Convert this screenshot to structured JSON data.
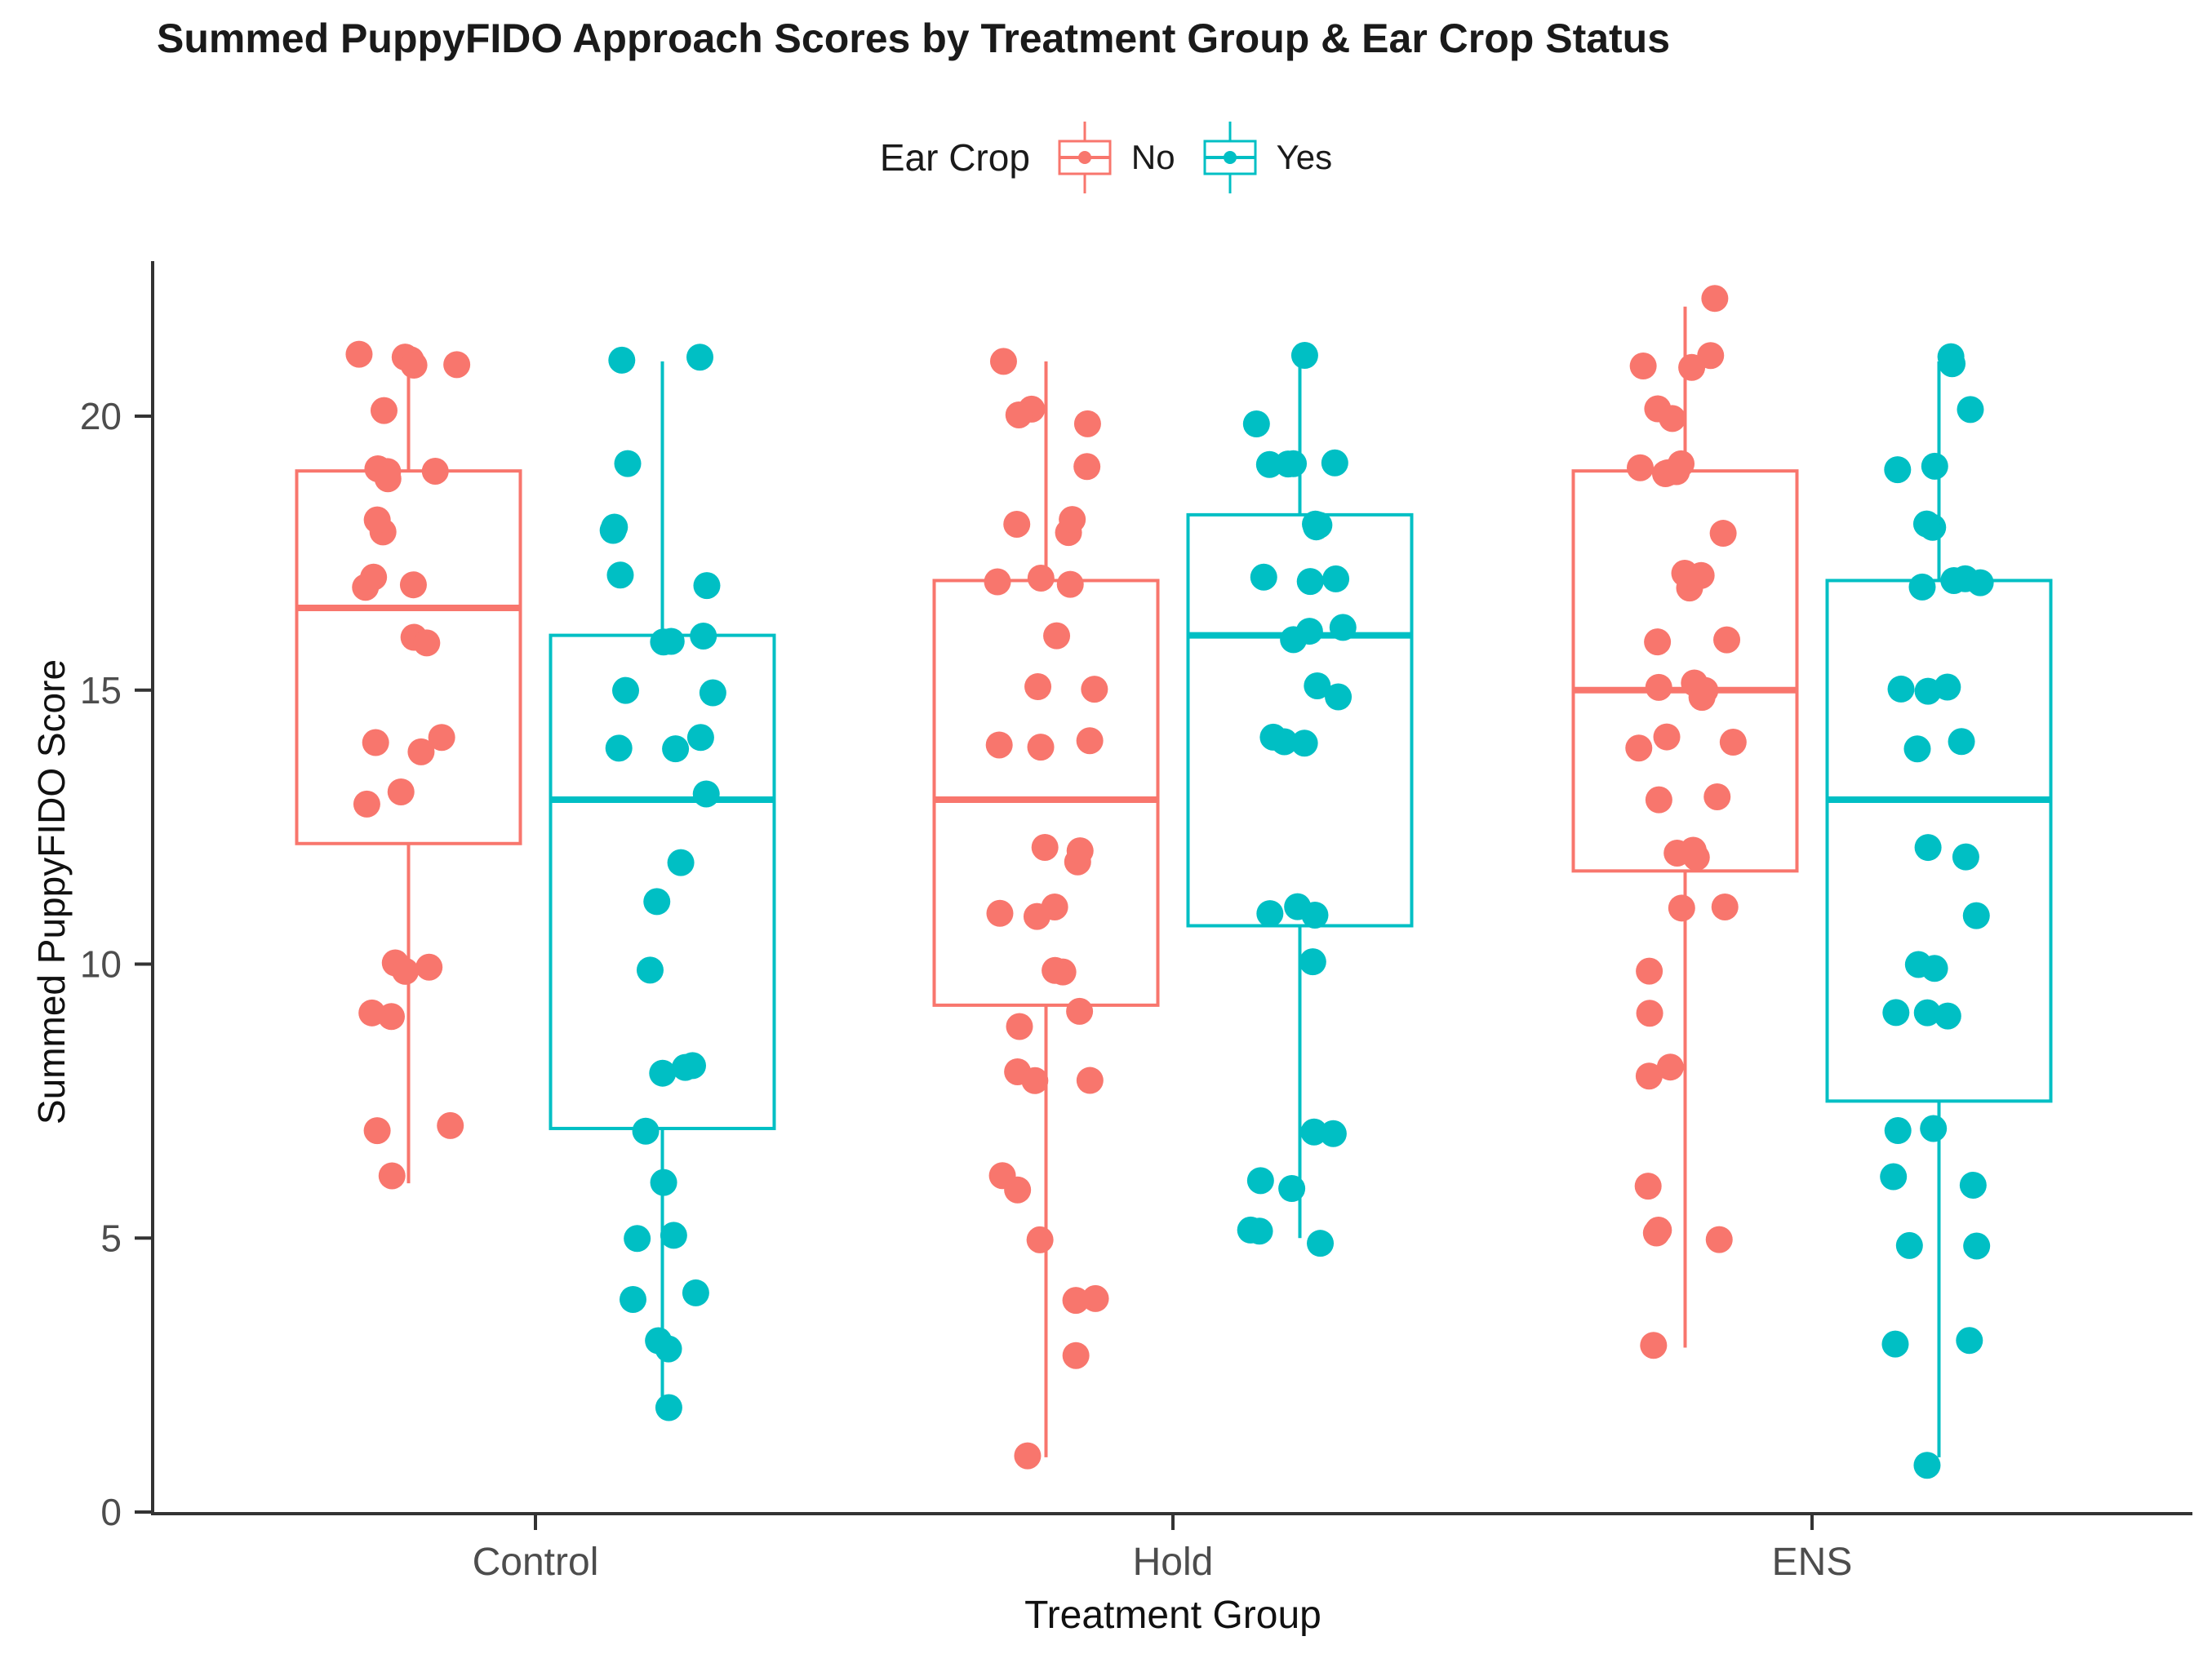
{
  "title": "Summed PuppyFIDO Approach Scores by Treatment Group & Ear Crop Status",
  "legend": {
    "title": "Ear Crop",
    "items": [
      {
        "label": "No",
        "color": "#F8766D"
      },
      {
        "label": "Yes",
        "color": "#00BFC4"
      }
    ]
  },
  "axes": {
    "x": {
      "label": "Treatment Group",
      "categories": [
        "Control",
        "Hold",
        "ENS"
      ]
    },
    "y": {
      "label": "Summed PuppyFIDO Score",
      "ticks": [
        0,
        5,
        10,
        15,
        20
      ],
      "range": [
        0,
        22.5
      ]
    }
  },
  "chart_data": {
    "type": "boxplot-jitter",
    "title": "Summed PuppyFIDO Approach Scores by Treatment Group & Ear Crop Status",
    "xlabel": "Treatment Group",
    "ylabel": "Summed PuppyFIDO Score",
    "ylim": [
      0,
      22.5
    ],
    "yticks": [
      0,
      5,
      10,
      15,
      20
    ],
    "categories": [
      "Control",
      "Hold",
      "ENS"
    ],
    "grid": false,
    "legend_position": "top",
    "series_colors": {
      "No": "#F8766D",
      "Yes": "#00BFC4"
    },
    "groups": [
      {
        "category": "Control",
        "ear_crop": "No",
        "color": "#F8766D",
        "box": {
          "min": 6,
          "q1": 12.2,
          "median": 16.5,
          "q3": 19,
          "max": 21
        },
        "points": [
          21,
          21,
          21,
          21,
          21,
          20,
          19,
          19,
          19,
          19,
          18,
          18,
          17,
          17,
          17,
          16,
          16,
          14,
          14,
          14,
          13,
          13,
          10,
          10,
          10,
          9,
          9,
          7,
          7,
          6
        ]
      },
      {
        "category": "Control",
        "ear_crop": "Yes",
        "color": "#00BFC4",
        "box": {
          "min": 2,
          "q1": 7,
          "median": 13,
          "q3": 16,
          "max": 21
        },
        "points": [
          21,
          21,
          19,
          18,
          18,
          17,
          17,
          16,
          16,
          16,
          15,
          15,
          14,
          14,
          14,
          13,
          12,
          11,
          10,
          8,
          8,
          8,
          7,
          6,
          5,
          5,
          4,
          4,
          3,
          3,
          2
        ]
      },
      {
        "category": "Hold",
        "ear_crop": "No",
        "color": "#F8766D",
        "box": {
          "min": 1,
          "q1": 9.25,
          "median": 13,
          "q3": 17,
          "max": 21
        },
        "points": [
          21,
          20,
          20,
          20,
          19,
          18,
          18,
          18,
          17,
          17,
          17,
          16,
          15,
          15,
          14,
          14,
          14,
          12,
          12,
          12,
          11,
          11,
          11,
          10,
          10,
          9,
          9,
          8,
          8,
          8,
          6,
          6,
          5,
          4,
          4,
          3,
          1
        ]
      },
      {
        "category": "Hold",
        "ear_crop": "Yes",
        "color": "#00BFC4",
        "box": {
          "min": 5,
          "q1": 10.7,
          "median": 16,
          "q3": 18.2,
          "max": 21
        },
        "points": [
          21,
          20,
          19,
          19,
          19,
          19,
          18,
          18,
          18,
          17,
          17,
          17,
          16,
          16,
          16,
          15,
          15,
          14,
          14,
          14,
          11,
          11,
          11,
          10,
          7,
          7,
          6,
          6,
          5,
          5,
          5
        ]
      },
      {
        "category": "ENS",
        "ear_crop": "No",
        "color": "#F8766D",
        "box": {
          "min": 3,
          "q1": 11.7,
          "median": 15,
          "q3": 19,
          "max": 22
        },
        "points": [
          22,
          21,
          21,
          21,
          20,
          20,
          19,
          19,
          19,
          19,
          19,
          18,
          17,
          17,
          17,
          16,
          16,
          15,
          15,
          15,
          15,
          14,
          14,
          14,
          13,
          13,
          12,
          12,
          12,
          11,
          11,
          10,
          9,
          8,
          8,
          6,
          5,
          5,
          5,
          3
        ]
      },
      {
        "category": "ENS",
        "ear_crop": "Yes",
        "color": "#00BFC4",
        "box": {
          "min": 1,
          "q1": 7.5,
          "median": 13,
          "q3": 17,
          "max": 21
        },
        "points": [
          21,
          21,
          20,
          19,
          19,
          18,
          18,
          17,
          17,
          17,
          17,
          15,
          15,
          15,
          14,
          14,
          12,
          12,
          11,
          10,
          10,
          9,
          9,
          9,
          7,
          7,
          6,
          6,
          5,
          5,
          3,
          3,
          1
        ]
      }
    ]
  }
}
